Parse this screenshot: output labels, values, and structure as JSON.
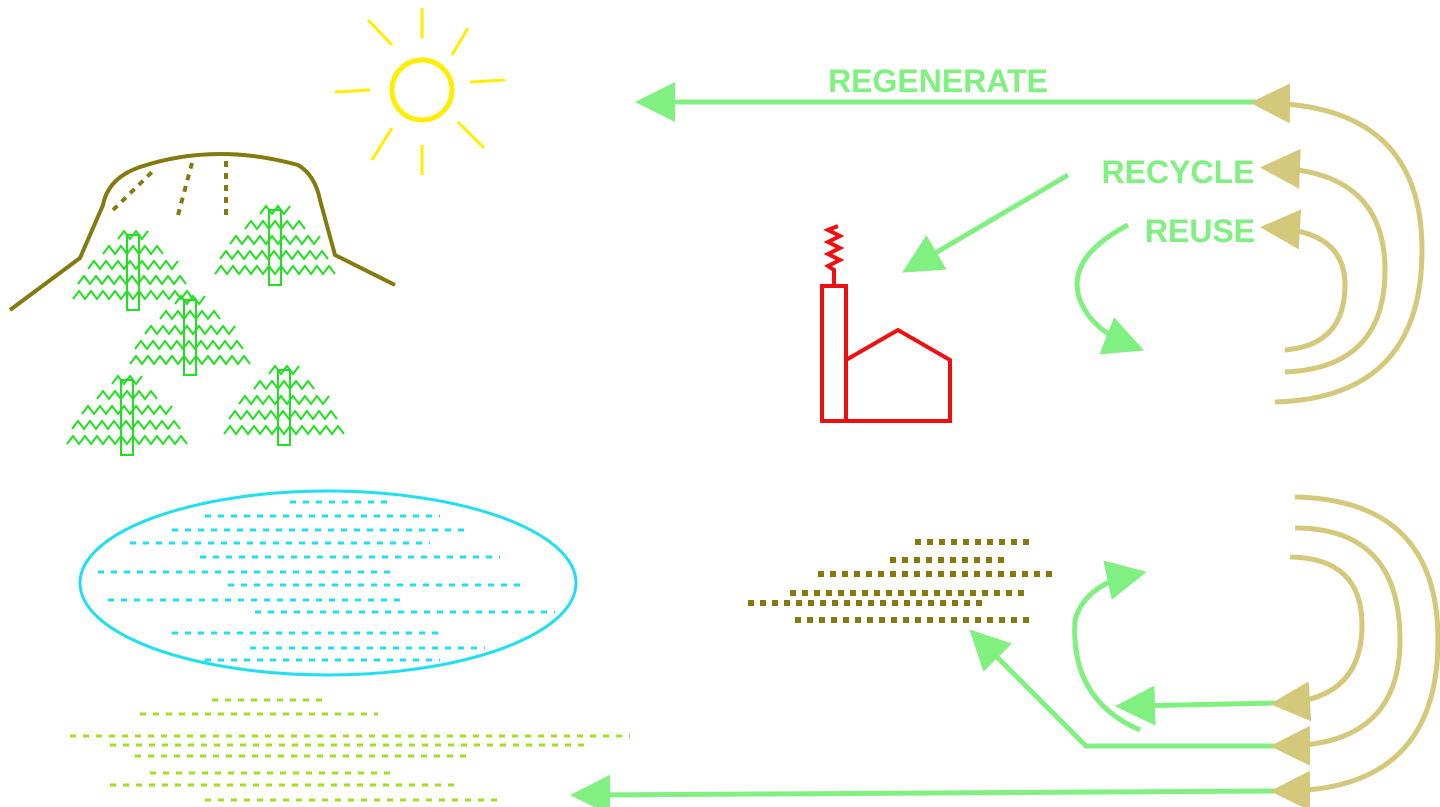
{
  "labels": {
    "regenerate": "REGENERATE",
    "recycle": "RECYCLE",
    "reuse": "REUSE"
  }
}
